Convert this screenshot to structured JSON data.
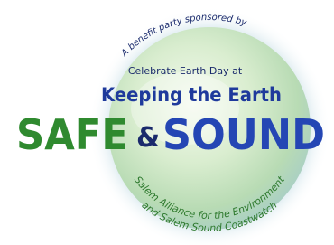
{
  "top_arc": "A benefit party sponsored by",
  "lines": [
    "Celebrate Earth Day at",
    "Keeping the Earth"
  ],
  "title": {
    "left": "SAFE",
    "amp": "&",
    "right": "SOUND"
  },
  "bottom_arcs": [
    "Salem Alliance for the Environment",
    "and Salem Sound Coastwatch"
  ]
}
